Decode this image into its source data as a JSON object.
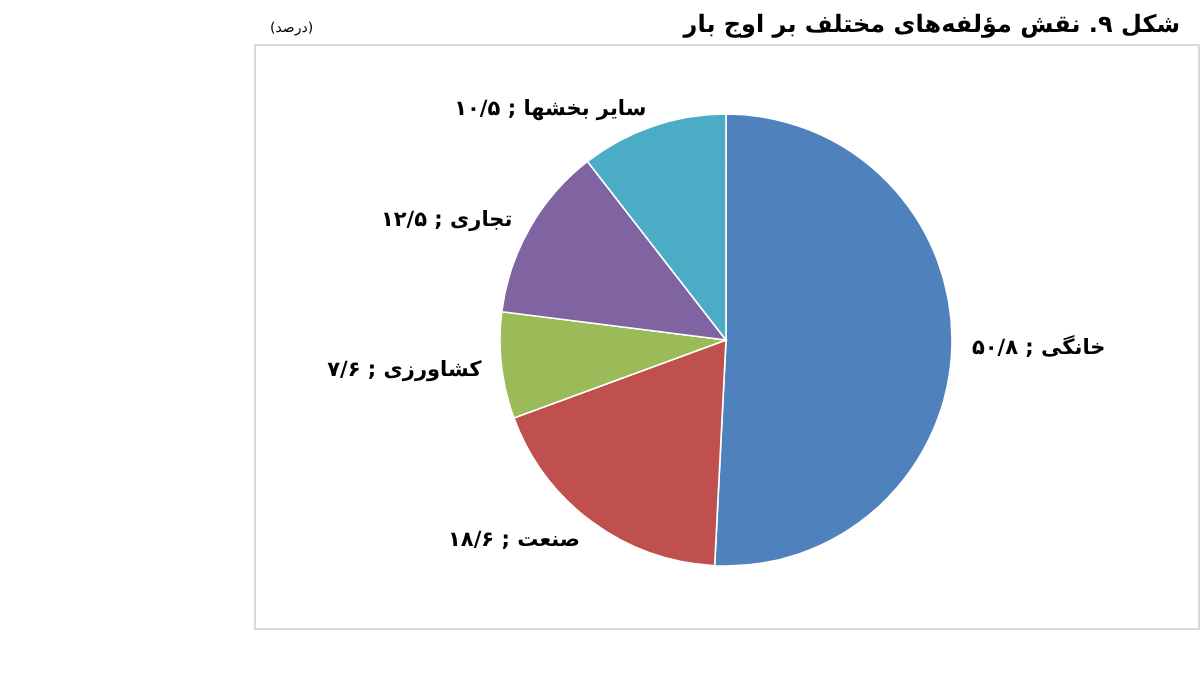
{
  "chart_data": {
    "type": "pie",
    "title": "شکل ۹. نقش مؤلفه‌های مختلف بر اوج بار",
    "subtitle": "(درصد)",
    "categories": [
      "خانگی",
      "صنعت",
      "کشاورزی",
      "تجاری",
      "سایر بخشها"
    ],
    "values": [
      50.8,
      18.6,
      7.6,
      12.5,
      10.5
    ],
    "value_labels": [
      "; ۵۰/۸",
      "; ۱۸/۶",
      "; ۷/۶",
      "; ۱۲/۵",
      "; ۱۰/۵"
    ],
    "colors": [
      "#4f81bd",
      "#c0504d",
      "#9bbb59",
      "#8064a2",
      "#4bacc6"
    ]
  }
}
